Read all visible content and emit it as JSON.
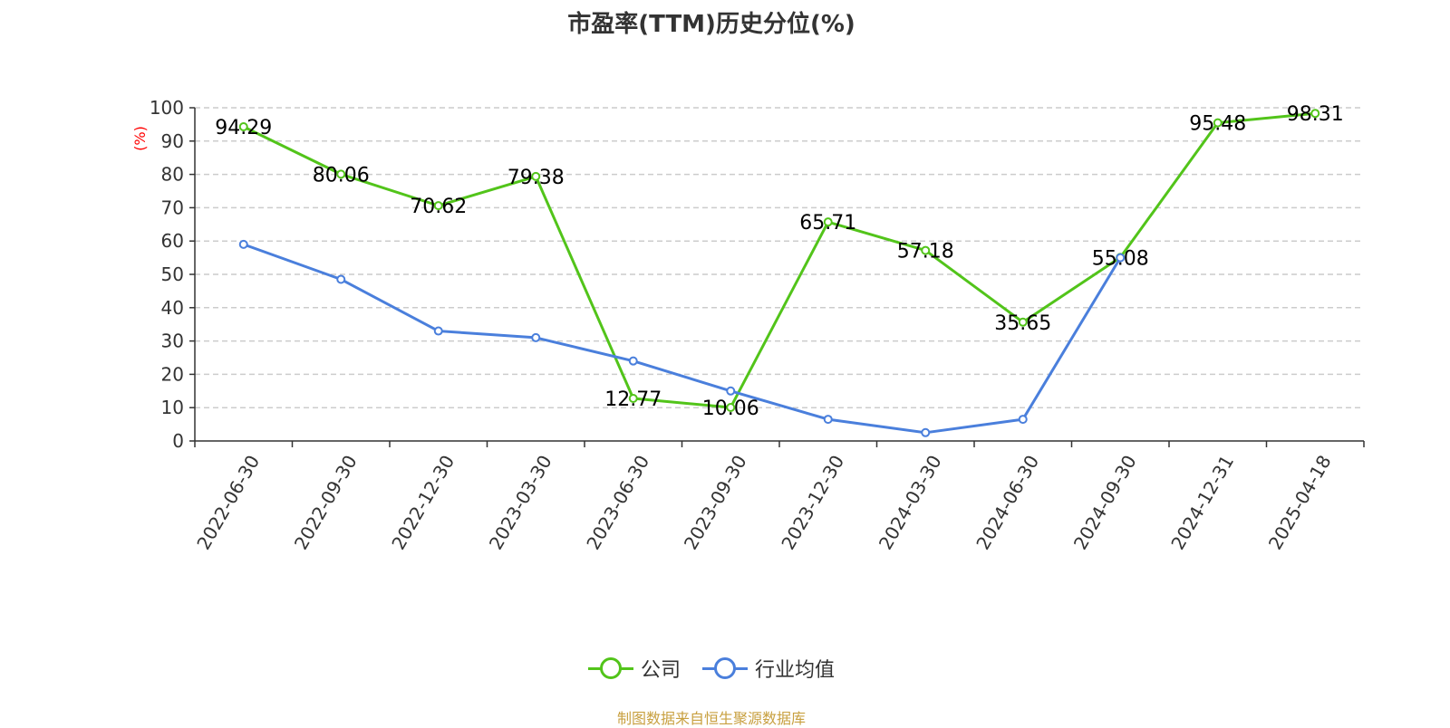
{
  "title": "市盈率(TTM)历史分位(%)",
  "footer": "制图数据来自恒生聚源数据库",
  "chart_data": {
    "type": "line",
    "title": "市盈率(TTM)历史分位(%)",
    "ylabel": "(%)",
    "xlabel": "",
    "ylim": [
      0,
      100
    ],
    "yticks": [
      0,
      10,
      20,
      30,
      40,
      50,
      60,
      70,
      80,
      90,
      100
    ],
    "grid": "horizontal dashed",
    "legend_position": "bottom",
    "categories": [
      "2022-06-30",
      "2022-09-30",
      "2022-12-30",
      "2023-03-30",
      "2023-06-30",
      "2023-09-30",
      "2023-12-30",
      "2024-03-30",
      "2024-06-30",
      "2024-09-30",
      "2024-12-31",
      "2025-04-18"
    ],
    "series": [
      {
        "name": "公司",
        "color": "#52c41a",
        "labels_shown": true,
        "values": [
          94.29,
          80.06,
          70.62,
          79.38,
          12.77,
          10.06,
          65.71,
          57.18,
          35.65,
          55.08,
          95.48,
          98.31
        ]
      },
      {
        "name": "行业均值",
        "color": "#4a7fdc",
        "labels_shown": false,
        "values": [
          59,
          48.5,
          33,
          31,
          24,
          15,
          6.5,
          2.5,
          6.5,
          55,
          null,
          null
        ]
      }
    ]
  }
}
